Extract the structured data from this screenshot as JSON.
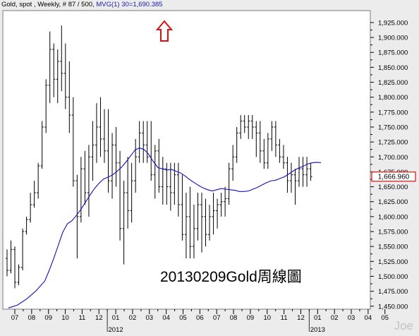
{
  "header": {
    "instrument": "Gold, spot , Weekly, # 87 / 500, ",
    "indicator": "MVG(1) 30=1,690.385"
  },
  "annotation": "20130209Gold周線圖",
  "watermark": "Joe",
  "colors": {
    "bars": "#000000",
    "ma_line": "#1010c0",
    "arrow": "#dd1111",
    "last_price_box": "#dd1111"
  },
  "chart_data": {
    "type": "bar",
    "subtype": "ohlc-weekly",
    "ylim": [
      1445,
      1945
    ],
    "yticks": [
      1450,
      1475,
      1500,
      1525,
      1550,
      1575,
      1600,
      1625,
      1650,
      1675,
      1700,
      1725,
      1750,
      1775,
      1800,
      1825,
      1850,
      1875,
      1900,
      1925
    ],
    "ytick_labels": [
      "1,450.000",
      "1,475.000",
      "1,500.000",
      "1,525.000",
      "1,550.000",
      "1,575.000",
      "1,600.000",
      "1,625.000",
      "1,650.000",
      "1,675.000",
      "1,700.000",
      "1,725.000",
      "1,750.000",
      "1,775.000",
      "1,800.000",
      "1,825.000",
      "1,850.000",
      "1,875.000",
      "1,900.000",
      "1,925.000"
    ],
    "x_month_labels": [
      "07",
      "08",
      "09",
      "10",
      "11",
      "12",
      "01",
      "02",
      "03",
      "04",
      "05",
      "06",
      "07",
      "08",
      "09",
      "10",
      "11",
      "12",
      "01",
      "02",
      "03",
      "04",
      "05"
    ],
    "x_year_labels": [
      {
        "label": "2012",
        "month_index": 6
      },
      {
        "label": "2013",
        "month_index": 18
      }
    ],
    "last_price_label": "1,666.960",
    "last_price": 1666.96,
    "up_arrow": true,
    "bars": [
      [
        1530,
        1545,
        1500,
        1510
      ],
      [
        1510,
        1560,
        1505,
        1545
      ],
      [
        1545,
        1550,
        1480,
        1490
      ],
      [
        1490,
        1520,
        1485,
        1515
      ],
      [
        1515,
        1580,
        1510,
        1575
      ],
      [
        1575,
        1600,
        1570,
        1595
      ],
      [
        1595,
        1640,
        1590,
        1620
      ],
      [
        1620,
        1660,
        1615,
        1640
      ],
      [
        1640,
        1690,
        1630,
        1685
      ],
      [
        1685,
        1760,
        1680,
        1750
      ],
      [
        1750,
        1830,
        1740,
        1820
      ],
      [
        1820,
        1910,
        1790,
        1880
      ],
      [
        1880,
        1890,
        1800,
        1830
      ],
      [
        1830,
        1880,
        1790,
        1860
      ],
      [
        1860,
        1920,
        1810,
        1840
      ],
      [
        1840,
        1890,
        1780,
        1800
      ],
      [
        1800,
        1860,
        1740,
        1770
      ],
      [
        1770,
        1800,
        1650,
        1660
      ],
      [
        1660,
        1670,
        1530,
        1600
      ],
      [
        1600,
        1700,
        1590,
        1680
      ],
      [
        1680,
        1710,
        1620,
        1640
      ],
      [
        1640,
        1720,
        1600,
        1700
      ],
      [
        1700,
        1760,
        1660,
        1720
      ],
      [
        1720,
        1790,
        1690,
        1750
      ],
      [
        1750,
        1800,
        1700,
        1730
      ],
      [
        1730,
        1780,
        1690,
        1710
      ],
      [
        1710,
        1780,
        1640,
        1660
      ],
      [
        1660,
        1740,
        1630,
        1720
      ],
      [
        1720,
        1750,
        1650,
        1690
      ],
      [
        1690,
        1710,
        1560,
        1580
      ],
      [
        1580,
        1660,
        1520,
        1640
      ],
      [
        1640,
        1700,
        1580,
        1610
      ],
      [
        1610,
        1690,
        1590,
        1660
      ],
      [
        1660,
        1730,
        1640,
        1700
      ],
      [
        1700,
        1760,
        1690,
        1740
      ],
      [
        1740,
        1760,
        1690,
        1720
      ],
      [
        1720,
        1760,
        1690,
        1700
      ],
      [
        1700,
        1760,
        1660,
        1670
      ],
      [
        1670,
        1720,
        1630,
        1710
      ],
      [
        1710,
        1730,
        1640,
        1650
      ],
      [
        1650,
        1700,
        1620,
        1680
      ],
      [
        1680,
        1690,
        1620,
        1650
      ],
      [
        1650,
        1690,
        1610,
        1640
      ],
      [
        1640,
        1690,
        1620,
        1670
      ],
      [
        1670,
        1690,
        1600,
        1620
      ],
      [
        1620,
        1670,
        1560,
        1570
      ],
      [
        1570,
        1640,
        1530,
        1600
      ],
      [
        1600,
        1650,
        1530,
        1550
      ],
      [
        1550,
        1620,
        1530,
        1580
      ],
      [
        1580,
        1640,
        1560,
        1620
      ],
      [
        1620,
        1640,
        1540,
        1600
      ],
      [
        1600,
        1630,
        1550,
        1570
      ],
      [
        1570,
        1620,
        1560,
        1600
      ],
      [
        1600,
        1640,
        1570,
        1610
      ],
      [
        1610,
        1630,
        1580,
        1620
      ],
      [
        1620,
        1640,
        1600,
        1625
      ],
      [
        1625,
        1650,
        1600,
        1630
      ],
      [
        1630,
        1690,
        1620,
        1680
      ],
      [
        1680,
        1720,
        1660,
        1700
      ],
      [
        1700,
        1750,
        1690,
        1740
      ],
      [
        1740,
        1770,
        1730,
        1760
      ],
      [
        1760,
        1770,
        1740,
        1750
      ],
      [
        1750,
        1770,
        1730,
        1760
      ],
      [
        1760,
        1770,
        1730,
        1750
      ],
      [
        1750,
        1760,
        1700,
        1740
      ],
      [
        1740,
        1760,
        1690,
        1710
      ],
      [
        1710,
        1730,
        1680,
        1690
      ],
      [
        1690,
        1740,
        1680,
        1730
      ],
      [
        1730,
        1760,
        1710,
        1750
      ],
      [
        1750,
        1760,
        1700,
        1720
      ],
      [
        1720,
        1730,
        1690,
        1700
      ],
      [
        1700,
        1720,
        1680,
        1690
      ],
      [
        1690,
        1700,
        1640,
        1660
      ],
      [
        1660,
        1690,
        1640,
        1670
      ],
      [
        1670,
        1680,
        1620,
        1660
      ],
      [
        1660,
        1700,
        1650,
        1680
      ],
      [
        1680,
        1700,
        1650,
        1670
      ],
      [
        1670,
        1700,
        1650,
        1680
      ],
      [
        1680,
        1690,
        1660,
        1667
      ]
    ],
    "ma_line": [
      [
        0,
        1447
      ],
      [
        2,
        1452
      ],
      [
        4,
        1462
      ],
      [
        6,
        1475
      ],
      [
        8,
        1492
      ],
      [
        9,
        1510
      ],
      [
        10,
        1530
      ],
      [
        11,
        1552
      ],
      [
        12,
        1574
      ],
      [
        13,
        1588
      ],
      [
        14,
        1593
      ],
      [
        15,
        1602
      ],
      [
        16,
        1612
      ],
      [
        17,
        1624
      ],
      [
        18,
        1636
      ],
      [
        19,
        1647
      ],
      [
        20,
        1656
      ],
      [
        21,
        1663
      ],
      [
        22,
        1666
      ],
      [
        23,
        1670
      ],
      [
        24,
        1676
      ],
      [
        25,
        1683
      ],
      [
        26,
        1692
      ],
      [
        27,
        1702
      ],
      [
        28,
        1712
      ],
      [
        29,
        1715
      ],
      [
        30,
        1712
      ],
      [
        31,
        1704
      ],
      [
        32,
        1692
      ],
      [
        33,
        1682
      ],
      [
        34,
        1680
      ],
      [
        35,
        1678
      ],
      [
        36,
        1679
      ],
      [
        37,
        1676
      ],
      [
        38,
        1673
      ],
      [
        39,
        1668
      ],
      [
        40,
        1662
      ],
      [
        41,
        1657
      ],
      [
        42,
        1652
      ],
      [
        43,
        1648
      ],
      [
        44,
        1645
      ],
      [
        45,
        1643
      ],
      [
        46,
        1645
      ],
      [
        47,
        1647
      ],
      [
        48,
        1646
      ],
      [
        49,
        1645
      ],
      [
        50,
        1644
      ],
      [
        51,
        1642
      ],
      [
        52,
        1642
      ],
      [
        53,
        1643
      ],
      [
        54,
        1646
      ],
      [
        55,
        1649
      ],
      [
        56,
        1653
      ],
      [
        57,
        1657
      ],
      [
        58,
        1660
      ],
      [
        59,
        1661
      ],
      [
        60,
        1664
      ],
      [
        61,
        1667
      ],
      [
        62,
        1672
      ],
      [
        63,
        1677
      ],
      [
        64,
        1681
      ],
      [
        65,
        1684
      ],
      [
        66,
        1688
      ],
      [
        67,
        1690
      ],
      [
        68,
        1691
      ],
      [
        69,
        1690.385
      ]
    ]
  }
}
